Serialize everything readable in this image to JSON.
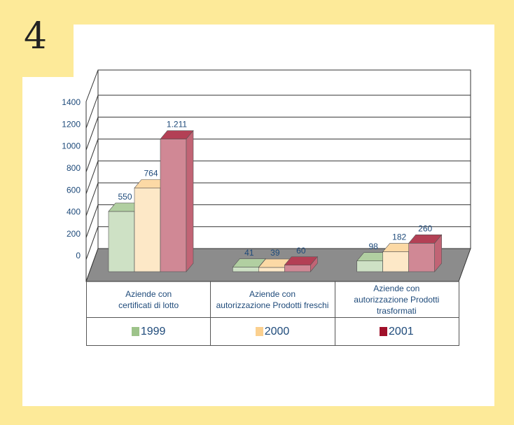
{
  "badge": "4",
  "chart_data": {
    "type": "bar3d",
    "categories": [
      "Aziende con\ncertificati di lotto",
      "Aziende con\nautorizzazione Prodotti freschi",
      "Aziende con\nautorizzazione Prodotti trasformati"
    ],
    "series": [
      {
        "name": "1999",
        "color": "#9dc38a",
        "values": [
          550,
          41,
          98
        ]
      },
      {
        "name": "2000",
        "color": "#fbd08f",
        "values": [
          764,
          39,
          182
        ]
      },
      {
        "name": "2001",
        "color": "#a0102a",
        "values": [
          1211,
          60,
          260
        ],
        "value_labels": [
          "1.211",
          "60",
          "260"
        ]
      }
    ],
    "ylim": [
      0,
      1400
    ],
    "yticks": [
      0,
      200,
      400,
      600,
      800,
      1000,
      1200,
      1400
    ],
    "grid": true,
    "legend": "bottom"
  }
}
